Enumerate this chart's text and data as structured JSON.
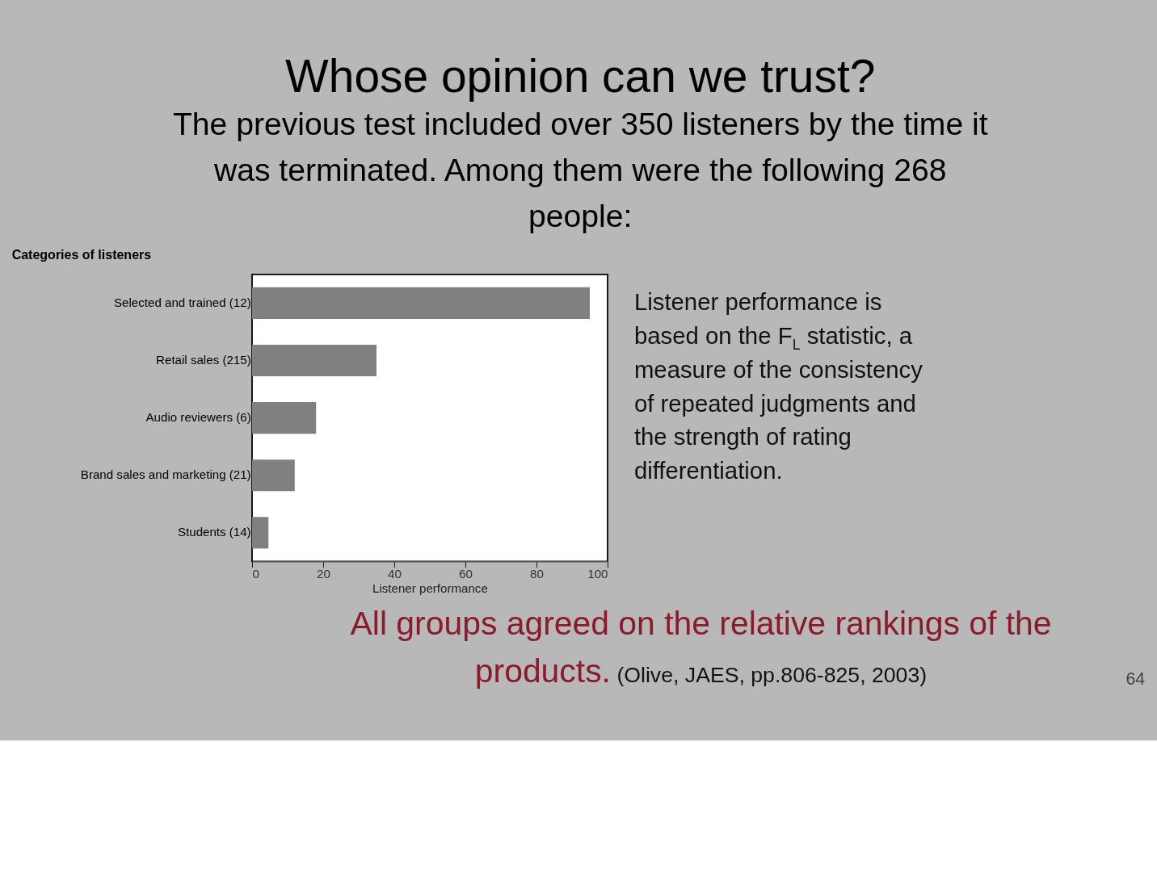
{
  "chart_data": {
    "type": "bar",
    "orientation": "horizontal",
    "title": "Whose opinion can we trust?",
    "subtitle": "The previous test included over 350 listeners by the time it was terminated.  Among them were the following 268 people:",
    "ylabel": "Categories of listeners",
    "xlabel": "Listener performance",
    "categories": [
      "Selected and trained (12)",
      "Retail sales (215)",
      "Audio reviewers (6)",
      "Brand sales and marketing (21)",
      "Students (14)"
    ],
    "values": [
      95,
      35,
      18,
      12,
      4.6
    ],
    "color": "#808080",
    "xlim": [
      0,
      100
    ],
    "xticks": [
      0,
      20,
      40,
      60,
      80,
      100
    ],
    "grid": false,
    "annotations": [
      "Listener performance is based on the F$_{L}$ statistic, a measure of the consistency of repeated judgments and the strength of rating differentiation.",
      "All groups agreed on the relative rankings of the products.",
      "(Olive, JAES, pp.806-825, 2003)",
      "64"
    ]
  }
}
